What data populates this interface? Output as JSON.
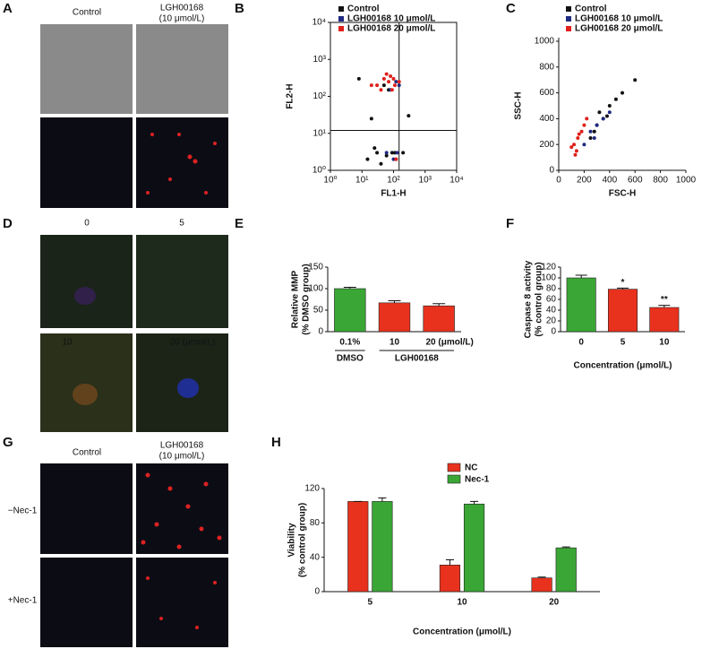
{
  "figure": {
    "panel_labels": [
      "A",
      "B",
      "C",
      "D",
      "E",
      "F",
      "G",
      "H"
    ],
    "panel_a": {
      "columns": [
        "Control",
        [
          "LGH00168",
          "(10 μmol/L)"
        ]
      ]
    },
    "panel_d": {
      "labels": [
        "0",
        "5",
        "10",
        "20 (μmol/L)"
      ]
    },
    "panel_g": {
      "columns": [
        "Control",
        [
          "LGH00168",
          "(10 μmol/L)"
        ]
      ],
      "rows": [
        "−Nec-1",
        "+Nec-1"
      ]
    }
  },
  "chart_data": [
    {
      "type": "scatter",
      "xlabel": "FL1-H",
      "ylabel": "FL2-H",
      "xscale": "log",
      "yscale": "log",
      "frame": true,
      "xlim": [
        1,
        10000
      ],
      "ylim": [
        1,
        10000
      ],
      "xticks": [
        {
          "value": 1,
          "label": "10⁰"
        },
        {
          "value": 10,
          "label": "10¹"
        },
        {
          "value": 100,
          "label": "10²"
        },
        {
          "value": 1000,
          "label": "10³"
        },
        {
          "value": 10000,
          "label": "10⁴"
        }
      ],
      "yticks": [
        {
          "value": 1,
          "label": "10⁰"
        },
        {
          "value": 10,
          "label": "10¹"
        },
        {
          "value": 100,
          "label": "10²"
        },
        {
          "value": 1000,
          "label": "10³"
        },
        {
          "value": 10000,
          "label": "10⁴"
        }
      ],
      "gates": {
        "x": 150,
        "y": 12
      },
      "series": [
        {
          "name": "Control",
          "color": "#111111",
          "x": [
            15,
            30,
            60,
            90,
            120,
            40,
            25,
            200,
            8,
            50,
            70,
            110,
            300,
            20
          ],
          "values": [
            2,
            3,
            2.5,
            3,
            2,
            1.5,
            4,
            3,
            300,
            200,
            150,
            3,
            30,
            25
          ]
        },
        {
          "name": "LGH00168 10 μmol/L",
          "color": "#1f2a80",
          "x": [
            100,
            130,
            80,
            150,
            60,
            120
          ],
          "values": [
            2,
            3,
            150,
            200,
            3,
            250
          ]
        },
        {
          "name": "LGH00168 20 μmol/L",
          "color": "#e0201a",
          "x": [
            30,
            50,
            70,
            90,
            110,
            60,
            40,
            80,
            100,
            20,
            150,
            120
          ],
          "values": [
            200,
            300,
            250,
            150,
            200,
            400,
            150,
            350,
            300,
            200,
            250,
            2
          ]
        }
      ]
    },
    {
      "type": "scatter",
      "xlabel": "FSC-H",
      "ylabel": "SSC-H",
      "frame": false,
      "xlim": [
        0,
        1000
      ],
      "ylim": [
        0,
        1000
      ],
      "xticks": [
        0,
        200,
        400,
        600,
        800,
        1000
      ],
      "yticks": [
        0,
        200,
        400,
        600,
        800,
        1000
      ],
      "series": [
        {
          "name": "Control",
          "color": "#111111",
          "x": [
            300,
            350,
            400,
            280,
            450,
            500,
            250,
            320,
            380,
            600
          ],
          "values": [
            350,
            400,
            500,
            300,
            550,
            600,
            250,
            450,
            420,
            700
          ]
        },
        {
          "name": "LGH00168 10 μmol/L",
          "color": "#1f2a80",
          "x": [
            250,
            300,
            350,
            280,
            200,
            400
          ],
          "values": [
            300,
            350,
            400,
            250,
            200,
            450
          ]
        },
        {
          "name": "LGH00168 20 μmol/L",
          "color": "#e0201a",
          "x": [
            120,
            150,
            180,
            200,
            140,
            160,
            100,
            220,
            130
          ],
          "values": [
            200,
            250,
            300,
            350,
            150,
            280,
            180,
            400,
            120
          ]
        }
      ]
    },
    {
      "type": "bar",
      "ylabel": [
        "Relative MMP",
        "(% DMSO group)"
      ],
      "categories": [
        "0.1%",
        "10",
        "20 (μmol/L)"
      ],
      "values": [
        100,
        67,
        60
      ],
      "errors": [
        3,
        5,
        5
      ],
      "colors": [
        "#3aa635",
        "#e8321e",
        "#e8321e"
      ],
      "groups": [
        "DMSO",
        "LGH00168"
      ],
      "ylim": [
        0,
        150
      ],
      "yticks": [
        0,
        50,
        100,
        150
      ]
    },
    {
      "type": "bar",
      "ylabel": [
        "Caspase 8 activity",
        "(% control group)"
      ],
      "xlabel": "Concentration (μmol/L)",
      "categories": [
        "0",
        "5",
        "10"
      ],
      "values": [
        100,
        79,
        45
      ],
      "errors": [
        5,
        2,
        4
      ],
      "colors": [
        "#3aa635",
        "#e8321e",
        "#e8321e"
      ],
      "significance": [
        null,
        "*",
        "**"
      ],
      "ylim": [
        0,
        120
      ],
      "yticks": [
        0,
        20,
        40,
        60,
        80,
        100,
        120
      ]
    },
    {
      "type": "bar",
      "ylabel": [
        "Viability",
        "(% control group)"
      ],
      "xlabel": "Concentration (μmol/L)",
      "categories": [
        "5",
        "10",
        "20"
      ],
      "series": [
        {
          "name": "NC",
          "color": "#e8321e",
          "values": [
            105,
            31,
            16
          ],
          "errors": [
            0,
            6,
            1
          ]
        },
        {
          "name": "Nec-1",
          "color": "#3aa635",
          "values": [
            105,
            102,
            51
          ],
          "errors": [
            4,
            3,
            1
          ]
        }
      ],
      "ylim": [
        0,
        120
      ],
      "yticks": [
        0,
        40,
        80,
        120
      ]
    }
  ]
}
